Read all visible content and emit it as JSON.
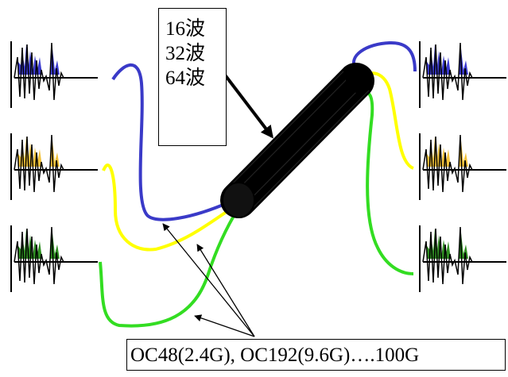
{
  "wavelength_labels": [
    "16波",
    "32波",
    "64波"
  ],
  "rate_label": "OC48(2.4G), OC192(9.6G)….100G",
  "colors": {
    "blue": "#3a3ac8",
    "yellow": "#ffff00",
    "green": "#33dd22",
    "wave_blue_fill": "#3b3bd0",
    "wave_yellow_fill": "#f2c23a",
    "wave_green_fill": "#2f8f22",
    "fiber": "#000000"
  },
  "signals": [
    {
      "name": "signal-blue-left",
      "color": "blue"
    },
    {
      "name": "signal-yellow-left",
      "color": "yellow"
    },
    {
      "name": "signal-green-left",
      "color": "green"
    },
    {
      "name": "signal-blue-right",
      "color": "blue"
    },
    {
      "name": "signal-yellow-right",
      "color": "yellow"
    },
    {
      "name": "signal-green-right",
      "color": "green"
    }
  ]
}
